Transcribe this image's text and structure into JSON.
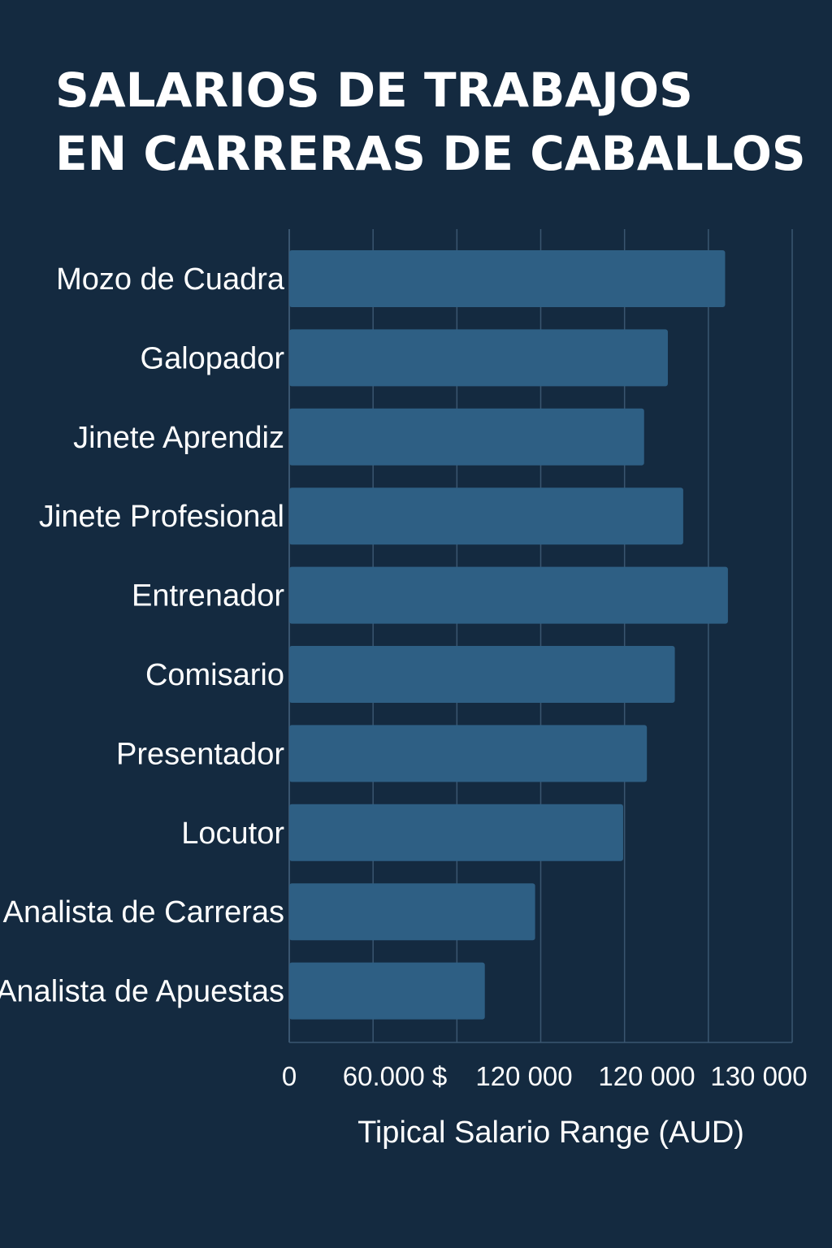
{
  "chart_data": {
    "type": "bar",
    "orientation": "horizontal",
    "title_lines": [
      "SALARIOS DE TRABAJOS",
      "EN CARRERAS DE CABALLOS"
    ],
    "xlabel": "Tipical Salario Range (AUD)",
    "ylabel": "",
    "categories": [
      "Mozo de Cuadra",
      "Galopador",
      "Jinete Aprendiz",
      "Jinete Profesional",
      "Entrenador",
      "Comisario",
      "Presentador",
      "Locutor",
      "Analista de Carreras",
      "Analista de Apuestas"
    ],
    "values": [
      156000,
      135500,
      127000,
      141000,
      157000,
      138000,
      128000,
      119500,
      88000,
      70000
    ],
    "x_tick_labels": [
      "0",
      "60.000 $",
      "120 000",
      "120 000",
      "130 000"
    ],
    "xlim": [
      0,
      180000
    ],
    "grid": true,
    "legend": "none",
    "colors": {
      "background": "#142a40",
      "bar": "#2e5f84",
      "grid": "#3a5670",
      "text": "#ffffff"
    }
  }
}
